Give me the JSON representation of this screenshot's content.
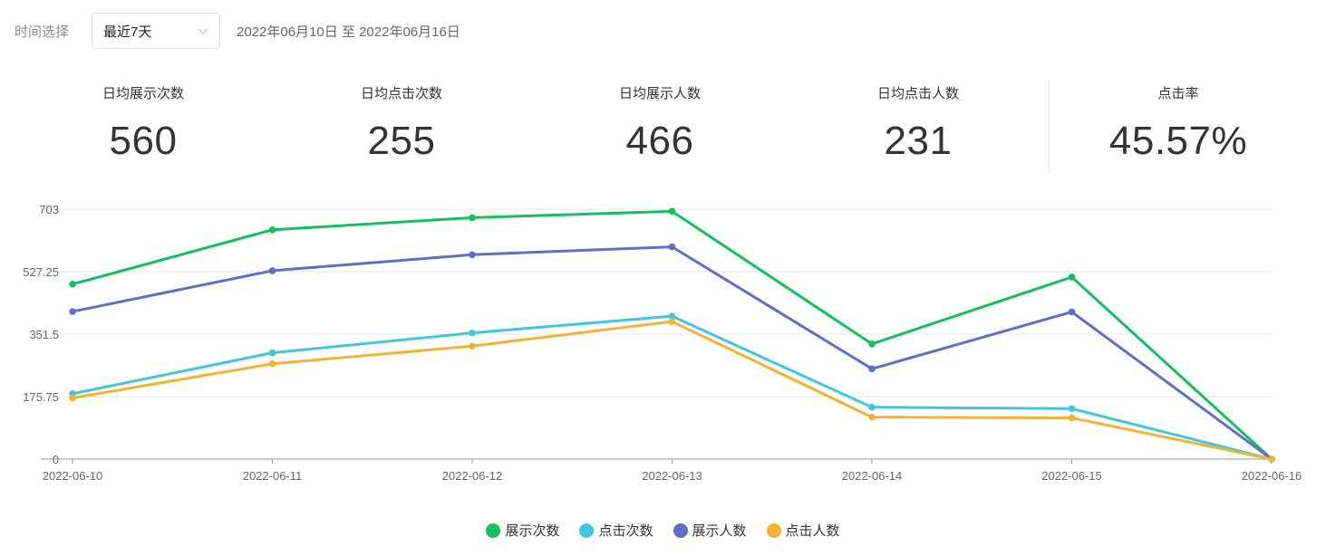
{
  "filter": {
    "label": "时间选择",
    "selected": "最近7天",
    "date_range": "2022年06月10日 至 2022年06月16日"
  },
  "stats": [
    {
      "label": "日均展示次数",
      "value": "560"
    },
    {
      "label": "日均点击次数",
      "value": "255"
    },
    {
      "label": "日均展示人数",
      "value": "466"
    },
    {
      "label": "日均点击人数",
      "value": "231"
    },
    {
      "label": "点击率",
      "value": "45.57%"
    }
  ],
  "chart_data": {
    "type": "line",
    "x": [
      "2022-06-10",
      "2022-06-11",
      "2022-06-12",
      "2022-06-13",
      "2022-06-14",
      "2022-06-15",
      "2022-06-16"
    ],
    "y_ticks": [
      "0",
      "175.75",
      "351.5",
      "527.25",
      "703"
    ],
    "ylim": [
      0,
      703
    ],
    "grid": true,
    "legend_position": "bottom",
    "series": [
      {
        "name": "展示次数",
        "color": "#13c060",
        "values": [
          492,
          645,
          679,
          697,
          324,
          512,
          0
        ]
      },
      {
        "name": "点击次数",
        "color": "#40c8da",
        "values": [
          184,
          299,
          355,
          402,
          146,
          142,
          0
        ]
      },
      {
        "name": "展示人数",
        "color": "#5f6fc4",
        "values": [
          415,
          530,
          575,
          597,
          254,
          414,
          0
        ]
      },
      {
        "name": "点击人数",
        "color": "#f2b232",
        "values": [
          172,
          268,
          318,
          387,
          118,
          116,
          0
        ]
      }
    ]
  }
}
